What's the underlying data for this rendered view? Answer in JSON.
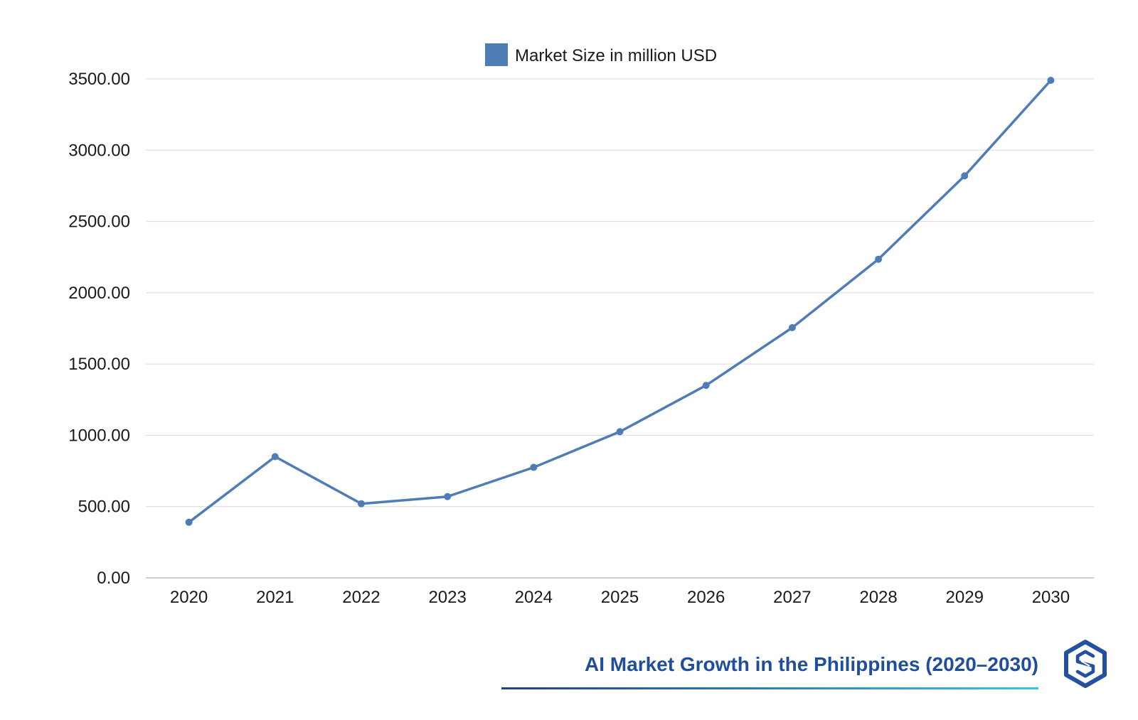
{
  "chart_data": {
    "type": "line",
    "categories": [
      "2020",
      "2021",
      "2022",
      "2023",
      "2024",
      "2025",
      "2026",
      "2027",
      "2028",
      "2029",
      "2030"
    ],
    "series": [
      {
        "name": "Market Size in million USD",
        "color": "#4e7db5",
        "values": [
          390,
          850,
          520,
          570,
          775,
          1025,
          1350,
          1755,
          2235,
          2820,
          3490
        ]
      }
    ],
    "yticks": [
      "0.00",
      "500.00",
      "1000.00",
      "1500.00",
      "2000.00",
      "2500.00",
      "3000.00",
      "3500.00"
    ],
    "ylim": [
      0,
      3500
    ],
    "grid": true,
    "legend_position": "top-center",
    "title": "",
    "xlabel": "",
    "ylabel": ""
  },
  "caption": {
    "text": "AI Market Growth in the Philippines (2020–2030)",
    "color": "#1f4f9c",
    "underline_start_color": "#1f3f8f",
    "underline_end_color": "#35c6e6"
  },
  "logo": {
    "icon": "hexagon-s-logo-icon",
    "color": "#2450a0"
  }
}
